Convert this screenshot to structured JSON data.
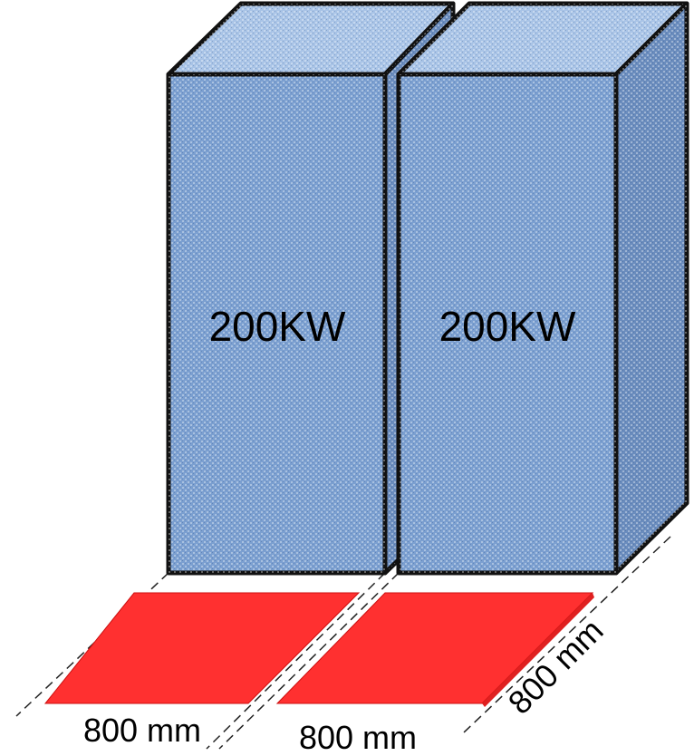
{
  "cabinets": [
    {
      "label": "200KW"
    },
    {
      "label": "200KW"
    }
  ],
  "dimensions": {
    "width_left": "800 mm",
    "width_right": "800 mm",
    "depth": "800 mm"
  },
  "colors": {
    "cabinet_front": "#7b9fd0",
    "cabinet_top": "#a8c3e6",
    "cabinet_side": "#6a8cbd",
    "outline": "#111111",
    "footprint": "#ff3030",
    "guide_line": "#222222"
  }
}
